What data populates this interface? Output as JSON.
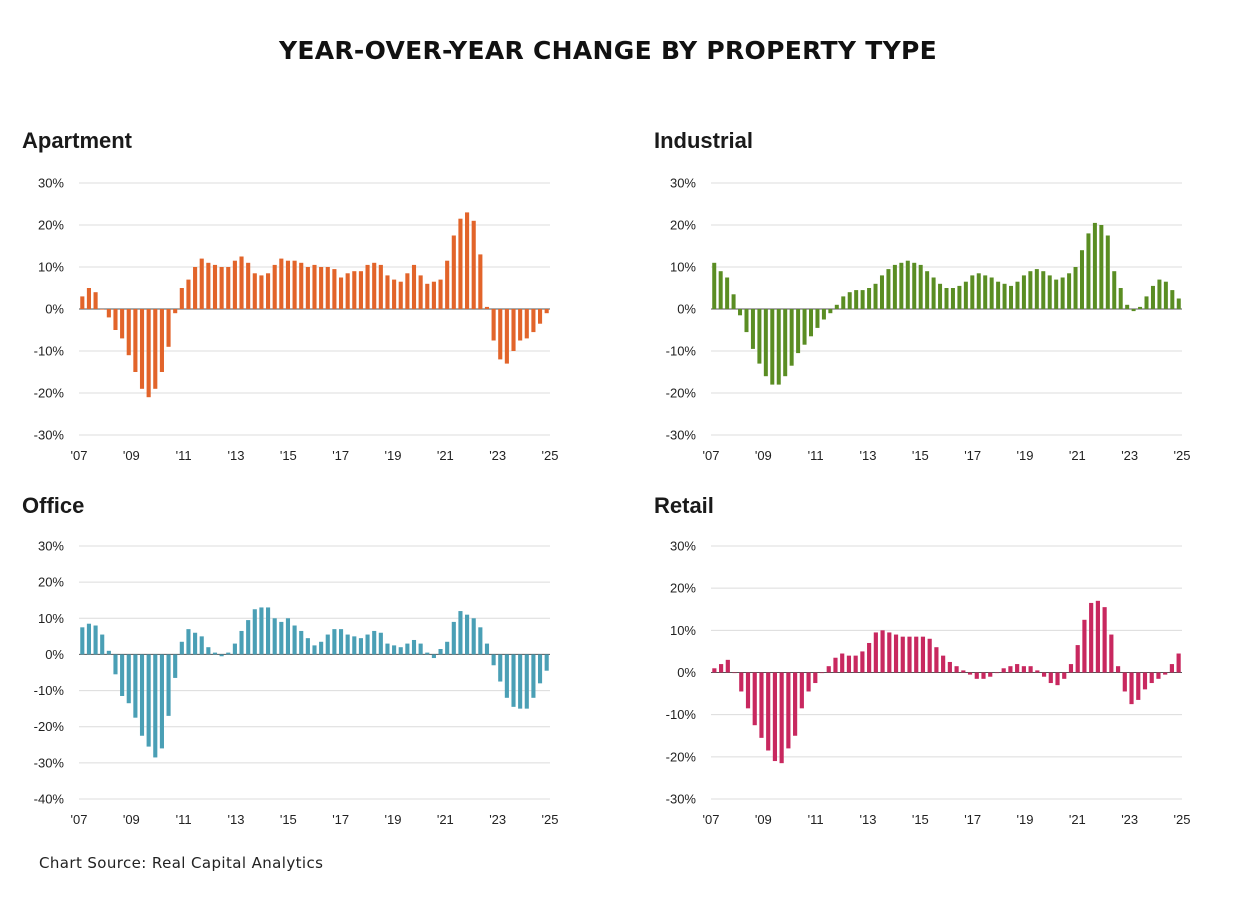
{
  "title": "YEAR-OVER-YEAR CHANGE BY PROPERTY TYPE",
  "source": "Chart Source: Real Capital Analytics",
  "chart_data": [
    {
      "type": "bar",
      "title": "Apartment",
      "color": "#e2642a",
      "ylim": [
        -30,
        30
      ],
      "yticks": [
        30,
        20,
        10,
        0,
        -10,
        -20,
        -30
      ],
      "ytick_labels": [
        "30%",
        "20%",
        "10%",
        "0%",
        "-10%",
        "-20%",
        "-30%"
      ],
      "xtick_labels": [
        "'07",
        "'09",
        "'11",
        "'13",
        "'15",
        "'17",
        "'19",
        "'21",
        "'23",
        "'25"
      ],
      "x_start": 2007,
      "x_end": 2025,
      "values": [
        3,
        5,
        4,
        0,
        -2,
        -5,
        -7,
        -11,
        -15,
        -19,
        -21,
        -19,
        -15,
        -9,
        -1,
        5,
        7,
        10,
        12,
        11,
        10.5,
        10,
        10,
        11.5,
        12.5,
        11,
        8.5,
        8,
        8.5,
        10.5,
        12,
        11.5,
        11.5,
        11,
        10,
        10.5,
        10,
        10,
        9.5,
        7.5,
        8.5,
        9,
        9,
        10.5,
        11,
        10.5,
        8,
        7,
        6.5,
        8.5,
        10.5,
        8,
        6,
        6.5,
        7,
        11.5,
        17.5,
        21.5,
        23,
        21,
        13,
        0.5,
        -7.5,
        -12,
        -13,
        -10,
        -7.5,
        -7,
        -5.5,
        -3.5,
        -1
      ]
    },
    {
      "type": "bar",
      "title": "Industrial",
      "color": "#5a8d23",
      "ylim": [
        -30,
        30
      ],
      "yticks": [
        30,
        20,
        10,
        0,
        -10,
        -20,
        -30
      ],
      "ytick_labels": [
        "30%",
        "20%",
        "10%",
        "0%",
        "-10%",
        "-20%",
        "-30%"
      ],
      "xtick_labels": [
        "'07",
        "'09",
        "'11",
        "'13",
        "'15",
        "'17",
        "'19",
        "'21",
        "'23",
        "'25"
      ],
      "x_start": 2007,
      "x_end": 2025,
      "values": [
        11,
        9,
        7.5,
        3.5,
        -1.5,
        -5.5,
        -9.5,
        -13,
        -16,
        -18,
        -18,
        -16,
        -13.5,
        -10.5,
        -8.5,
        -6.5,
        -4.5,
        -2.5,
        -1,
        1,
        3,
        4,
        4.5,
        4.5,
        5,
        6,
        8,
        9.5,
        10.5,
        11,
        11.5,
        11,
        10.5,
        9,
        7.5,
        6,
        5,
        5,
        5.5,
        6.5,
        8,
        8.5,
        8,
        7.5,
        6.5,
        6,
        5.5,
        6.5,
        8,
        9,
        9.5,
        9,
        8,
        7,
        7.5,
        8.5,
        10,
        14,
        18,
        20.5,
        20,
        17.5,
        9,
        5,
        1,
        -0.5,
        0.5,
        3,
        5.5,
        7,
        6.5,
        4.5,
        2.5
      ]
    },
    {
      "type": "bar",
      "title": "Office",
      "color": "#4a9fb5",
      "ylim": [
        -40,
        30
      ],
      "yticks": [
        30,
        20,
        10,
        0,
        -10,
        -20,
        -30,
        -40
      ],
      "ytick_labels": [
        "30%",
        "20%",
        "10%",
        "0%",
        "-10%",
        "-20%",
        "-30%",
        "-40%"
      ],
      "xtick_labels": [
        "'07",
        "'09",
        "'11",
        "'13",
        "'15",
        "'17",
        "'19",
        "'21",
        "'23",
        "'25"
      ],
      "x_start": 2007,
      "x_end": 2025,
      "values": [
        7.5,
        8.5,
        8,
        5.5,
        1,
        -5.5,
        -11.5,
        -13.5,
        -17.5,
        -22.5,
        -25.5,
        -28.5,
        -26,
        -17,
        -6.5,
        3.5,
        7,
        6,
        5,
        2,
        0.5,
        -0.5,
        0.5,
        3,
        6.5,
        9.5,
        12.5,
        13,
        13,
        10,
        9,
        10,
        8,
        6.5,
        4.5,
        2.5,
        3.5,
        5.5,
        7,
        7,
        5.5,
        5,
        4.5,
        5.5,
        6.5,
        6,
        3,
        2.5,
        2,
        3,
        4,
        3,
        0.5,
        -1,
        1.5,
        3.5,
        9,
        12,
        11,
        10,
        7.5,
        3,
        -3,
        -7.5,
        -12,
        -14.5,
        -15,
        -15,
        -12,
        -8,
        -4.5
      ]
    },
    {
      "type": "bar",
      "title": "Retail",
      "color": "#c8285f",
      "ylim": [
        -30,
        30
      ],
      "yticks": [
        30,
        20,
        10,
        0,
        -10,
        -20,
        -30
      ],
      "ytick_labels": [
        "30%",
        "20%",
        "10%",
        "0%",
        "-10%",
        "-20%",
        "-30%"
      ],
      "xtick_labels": [
        "'07",
        "'09",
        "'11",
        "'13",
        "'15",
        "'17",
        "'19",
        "'21",
        "'23",
        "'25"
      ],
      "x_start": 2007,
      "x_end": 2025,
      "values": [
        1,
        2,
        3,
        0,
        -4.5,
        -8.5,
        -12.5,
        -15.5,
        -18.5,
        -21,
        -21.5,
        -18,
        -15,
        -8.5,
        -4.5,
        -2.5,
        0,
        1.5,
        3.5,
        4.5,
        4,
        4,
        5,
        7,
        9.5,
        10,
        9.5,
        9,
        8.5,
        8.5,
        8.5,
        8.5,
        8,
        6,
        4,
        2.5,
        1.5,
        0.5,
        -0.5,
        -1.5,
        -1.5,
        -1,
        0,
        1,
        1.5,
        2,
        1.5,
        1.5,
        0.5,
        -1,
        -2.5,
        -3,
        -1.5,
        2,
        6.5,
        12.5,
        16.5,
        17,
        15.5,
        9,
        1.5,
        -4.5,
        -7.5,
        -6.5,
        -4,
        -2.5,
        -1.5,
        -0.5,
        2,
        4.5
      ]
    }
  ]
}
